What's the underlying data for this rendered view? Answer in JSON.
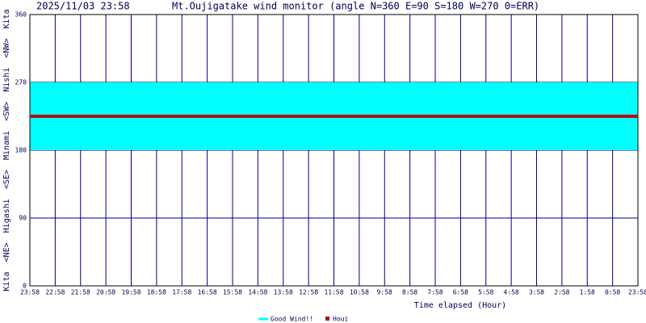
{
  "chart_data": {
    "type": "line",
    "timestamp": "2025/11/03 23:58",
    "title": "Mt.Oujigatake wind monitor (angle N=360 E=90 S=180 W=270 0=ERR)",
    "y_label": "Kita  <NE>  Higashi  <SE>  Minami  <SW>  Nishi  <NW>  Kita",
    "x_label": "Time elapsed (Hour)",
    "categories": [
      "23:58",
      "22:58",
      "21:58",
      "20:58",
      "19:58",
      "18:58",
      "17:58",
      "16:58",
      "15:58",
      "14:58",
      "13:58",
      "12:58",
      "11:58",
      "10:58",
      "9:58",
      "8:58",
      "7:58",
      "6:58",
      "5:58",
      "4:58",
      "3:58",
      "2:58",
      "1:58",
      "0:58",
      "23:58"
    ],
    "bands": [
      {
        "name": "Good Wind!!",
        "color": "#00ffff",
        "range": [
          180,
          270
        ]
      }
    ],
    "series": [
      {
        "name": "Houi",
        "color": "#b01010",
        "values": [
          225,
          225,
          225,
          225,
          225,
          225,
          225,
          225,
          225,
          225,
          225,
          225,
          225,
          225,
          225,
          225,
          225,
          225,
          225,
          225,
          225,
          225,
          225,
          225,
          225
        ]
      }
    ],
    "ylim": [
      0,
      360
    ],
    "yticks": [
      0,
      90,
      180,
      270,
      360
    ],
    "grid": true
  }
}
